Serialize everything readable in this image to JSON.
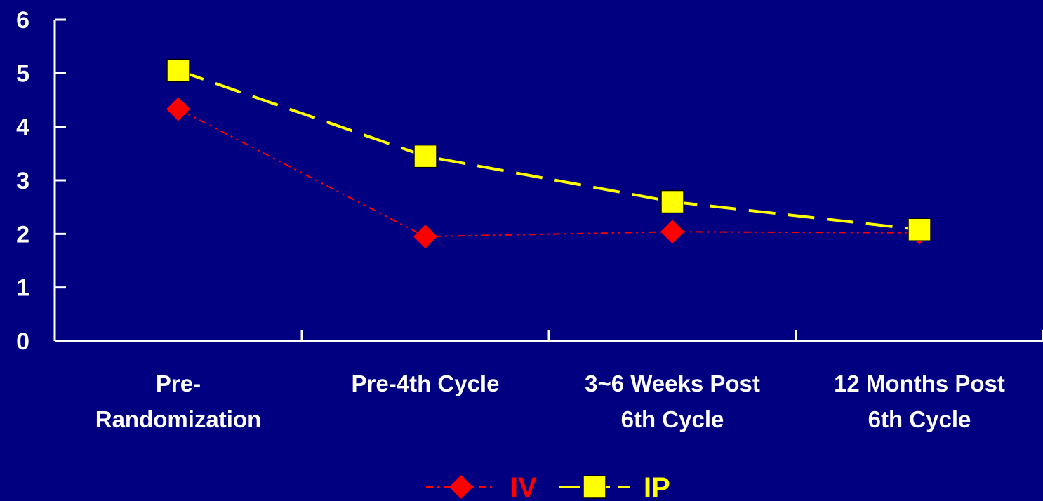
{
  "chart_data": {
    "type": "line",
    "title": "",
    "xlabel": "",
    "ylabel": "",
    "ylim": [
      0,
      6
    ],
    "yticks": [
      "0",
      "1",
      "2",
      "3",
      "4",
      "5",
      "6"
    ],
    "categories": [
      [
        "Pre-",
        "Randomization"
      ],
      [
        "Pre-4th Cycle"
      ],
      [
        "3~6 Weeks Post",
        "6th Cycle"
      ],
      [
        "12 Months Post",
        "6th Cycle"
      ]
    ],
    "series": [
      {
        "name": "IV",
        "values": [
          4.33,
          1.95,
          2.04,
          2.02
        ],
        "color": "#ff0000",
        "marker": "diamond",
        "line": "dash-dot-dot"
      },
      {
        "name": "IP",
        "values": [
          5.05,
          3.45,
          2.6,
          2.08
        ],
        "color": "#ffff00",
        "marker": "square",
        "line": "dashed"
      }
    ],
    "grid": false,
    "legend_position": "bottom",
    "background": "#000080",
    "axis_color": "#ffffff",
    "text_color": "#ffffff"
  }
}
